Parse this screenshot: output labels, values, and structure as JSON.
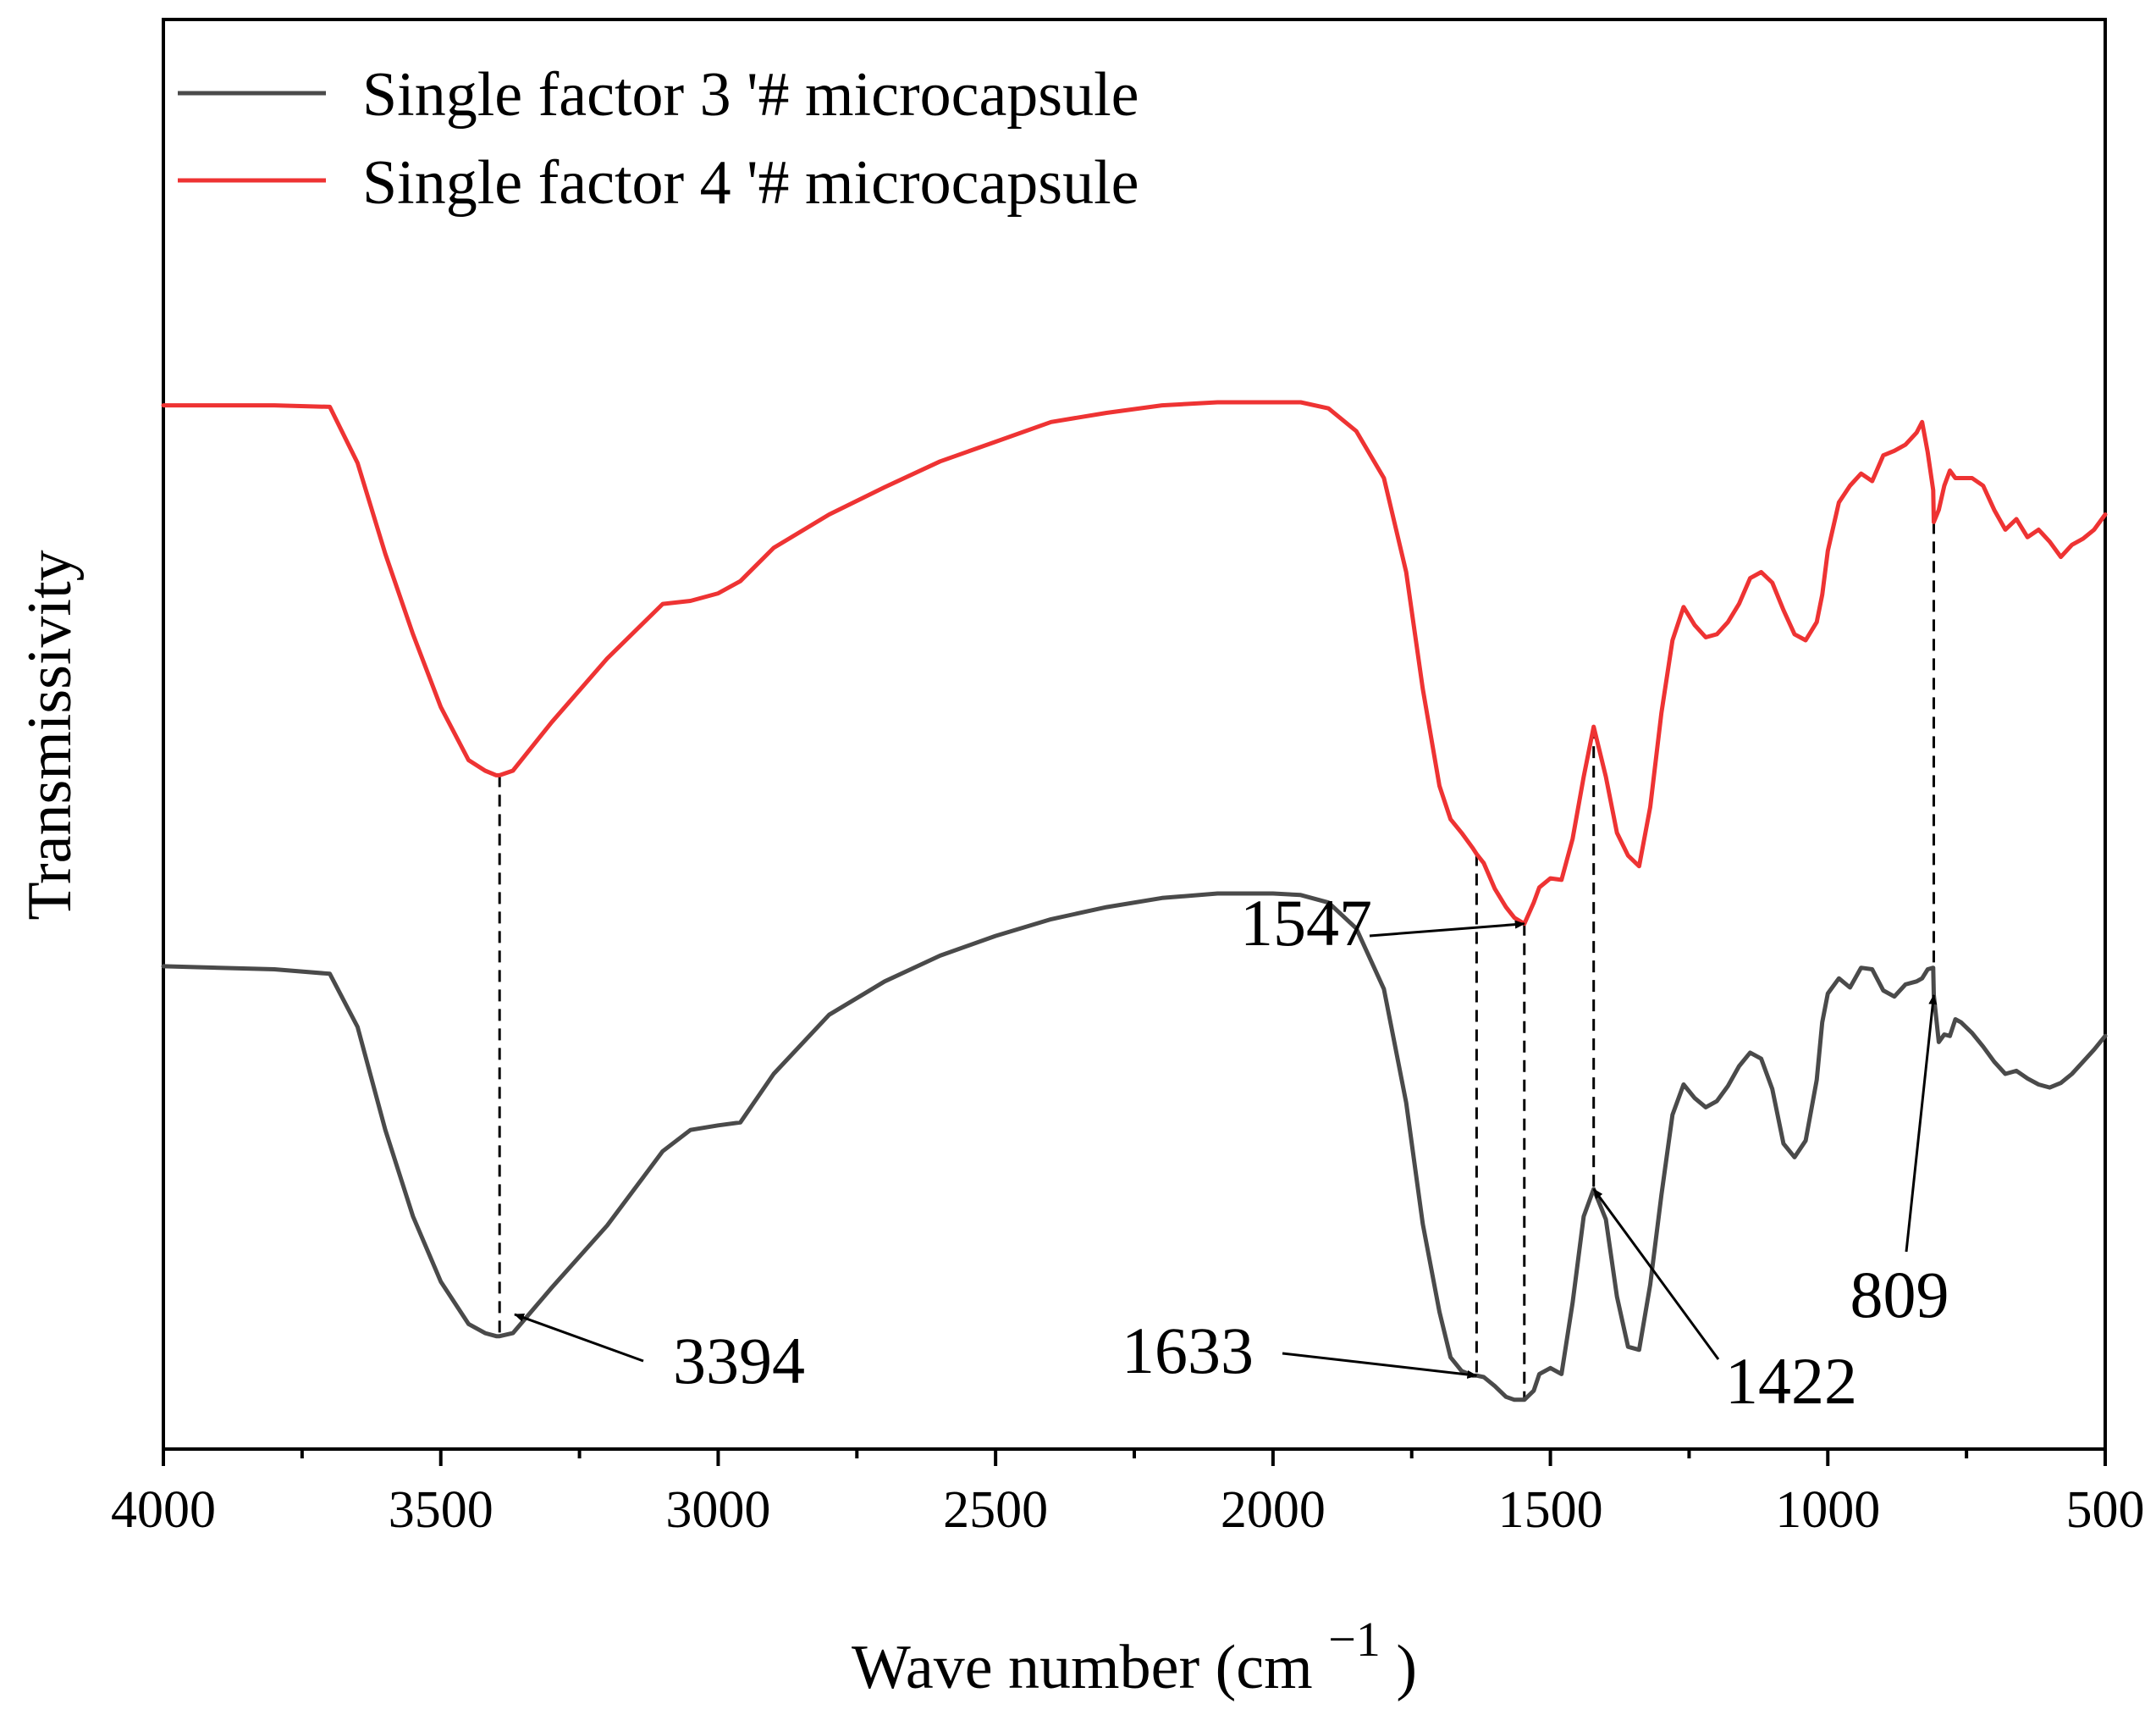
{
  "chart_data": {
    "type": "line",
    "title": "",
    "xlabel": "Wave number (cm",
    "xlabel_superscript": "−1",
    "xlabel_close": ")",
    "ylabel": "Transmissivity",
    "xlim": [
      4000,
      500
    ],
    "ylim": [
      0,
      100
    ],
    "x_ticks": [
      4000,
      3500,
      3000,
      2500,
      2000,
      1500,
      1000,
      500
    ],
    "x_tick_labels": [
      "4000",
      "3500",
      "3000",
      "2500",
      "2000",
      "1500",
      "1000",
      "500"
    ],
    "x_minor_ticks": [
      3750,
      3250,
      2750,
      2250,
      1750,
      1250,
      750
    ],
    "y_ticks_shown": false,
    "grid": false,
    "legend_position": "top-left",
    "series": [
      {
        "name": "Single factor 3 '# microcapsule",
        "color": "#4a4a4a",
        "x": [
          4000,
          3800,
          3700,
          3650,
          3600,
          3550,
          3500,
          3450,
          3420,
          3400,
          3394,
          3370,
          3300,
          3200,
          3100,
          3050,
          3000,
          2960,
          2900,
          2800,
          2700,
          2600,
          2500,
          2400,
          2300,
          2200,
          2100,
          2000,
          1950,
          1900,
          1850,
          1800,
          1760,
          1730,
          1700,
          1680,
          1660,
          1640,
          1633,
          1620,
          1600,
          1580,
          1565,
          1547,
          1530,
          1520,
          1500,
          1480,
          1460,
          1440,
          1422,
          1400,
          1380,
          1360,
          1340,
          1320,
          1300,
          1280,
          1260,
          1240,
          1220,
          1200,
          1180,
          1160,
          1140,
          1120,
          1100,
          1080,
          1060,
          1040,
          1020,
          1010,
          1000,
          980,
          960,
          940,
          920,
          900,
          880,
          860,
          840,
          830,
          820,
          810,
          809,
          800,
          790,
          780,
          770,
          760,
          740,
          720,
          700,
          680,
          660,
          640,
          620,
          600,
          580,
          560,
          540,
          520,
          500
        ],
        "values": [
          29,
          28.8,
          28.5,
          25,
          18.2,
          12.5,
          8.2,
          5.4,
          4.8,
          4.6,
          4.6,
          4.8,
          7.8,
          11.9,
          16.8,
          18.2,
          18.5,
          18.7,
          21.9,
          25.8,
          28,
          29.7,
          31,
          32.1,
          32.9,
          33.5,
          33.8,
          33.8,
          33.7,
          33.2,
          31.5,
          27.5,
          20,
          12,
          6.2,
          3.2,
          2.3,
          2,
          2,
          1.9,
          1.3,
          0.6,
          0.4,
          0.4,
          1,
          2.1,
          2.5,
          2.1,
          6.8,
          12.5,
          14.3,
          12.3,
          7.2,
          3.9,
          3.7,
          8,
          13.9,
          19.2,
          21.2,
          20.3,
          19.7,
          20.1,
          21.1,
          22.4,
          23.3,
          22.9,
          20.9,
          17.3,
          16.4,
          17.5,
          21.5,
          25.3,
          27.2,
          28.2,
          27.6,
          28.9,
          28.8,
          27.4,
          27,
          27.8,
          28,
          28.2,
          28.8,
          28.9,
          27.1,
          24,
          24.5,
          24.4,
          25.5,
          25.3,
          24.6,
          23.7,
          22.7,
          21.9,
          22.1,
          21.6,
          21.2,
          21,
          21.3,
          21.9,
          22.7,
          23.5,
          24.4
        ]
      },
      {
        "name": "Single factor 4 '# microcapsule",
        "color": "#ee3333",
        "x": [
          4000,
          3800,
          3700,
          3650,
          3600,
          3550,
          3500,
          3450,
          3420,
          3400,
          3394,
          3370,
          3300,
          3200,
          3100,
          3050,
          3000,
          2960,
          2900,
          2800,
          2700,
          2600,
          2500,
          2400,
          2300,
          2200,
          2100,
          2000,
          1950,
          1900,
          1850,
          1800,
          1760,
          1730,
          1700,
          1680,
          1660,
          1640,
          1633,
          1620,
          1600,
          1580,
          1565,
          1547,
          1530,
          1520,
          1500,
          1480,
          1460,
          1440,
          1422,
          1400,
          1380,
          1360,
          1340,
          1320,
          1300,
          1280,
          1260,
          1240,
          1220,
          1200,
          1180,
          1160,
          1140,
          1120,
          1100,
          1080,
          1060,
          1040,
          1020,
          1010,
          1000,
          980,
          960,
          940,
          920,
          900,
          880,
          860,
          840,
          830,
          820,
          810,
          809,
          800,
          790,
          780,
          770,
          760,
          740,
          720,
          700,
          680,
          660,
          640,
          620,
          600,
          580,
          560,
          540,
          520,
          500
        ],
        "values": [
          66,
          66,
          65.9,
          62.2,
          56.2,
          50.9,
          46.1,
          42.6,
          41.9,
          41.6,
          41.6,
          41.9,
          45.1,
          49.3,
          52.9,
          53.1,
          53.6,
          54.4,
          56.6,
          58.8,
          60.6,
          62.3,
          63.6,
          64.9,
          65.5,
          66,
          66.2,
          66.2,
          66.2,
          65.8,
          64.3,
          61.2,
          55,
          47.3,
          40.9,
          38.7,
          37.8,
          36.8,
          36.4,
          35.8,
          34.1,
          32.9,
          32.2,
          31.8,
          33.2,
          34.2,
          34.8,
          34.7,
          37.4,
          41.5,
          44.8,
          41.5,
          37.8,
          36.3,
          35.6,
          39.5,
          45.7,
          50.5,
          52.7,
          51.5,
          50.7,
          50.9,
          51.7,
          52.9,
          54.6,
          55,
          54.3,
          52.5,
          50.9,
          50.5,
          51.7,
          53.5,
          56.4,
          59.6,
          60.7,
          61.5,
          61,
          62.7,
          63,
          63.4,
          64.2,
          64.9,
          62.9,
          60.4,
          58.3,
          59.1,
          60.7,
          61.7,
          61.2,
          61.2,
          61.2,
          60.7,
          59.1,
          57.8,
          58.5,
          57.3,
          57.8,
          57,
          56,
          56.8,
          57.2,
          57.8,
          58.8
        ]
      }
    ],
    "annotations": [
      {
        "label": "3394",
        "x": 3394
      },
      {
        "label": "1633",
        "x": 1633
      },
      {
        "label": "1547",
        "x": 1547
      },
      {
        "label": "1422",
        "x": 1422
      },
      {
        "label": "809",
        "x": 809
      }
    ]
  }
}
